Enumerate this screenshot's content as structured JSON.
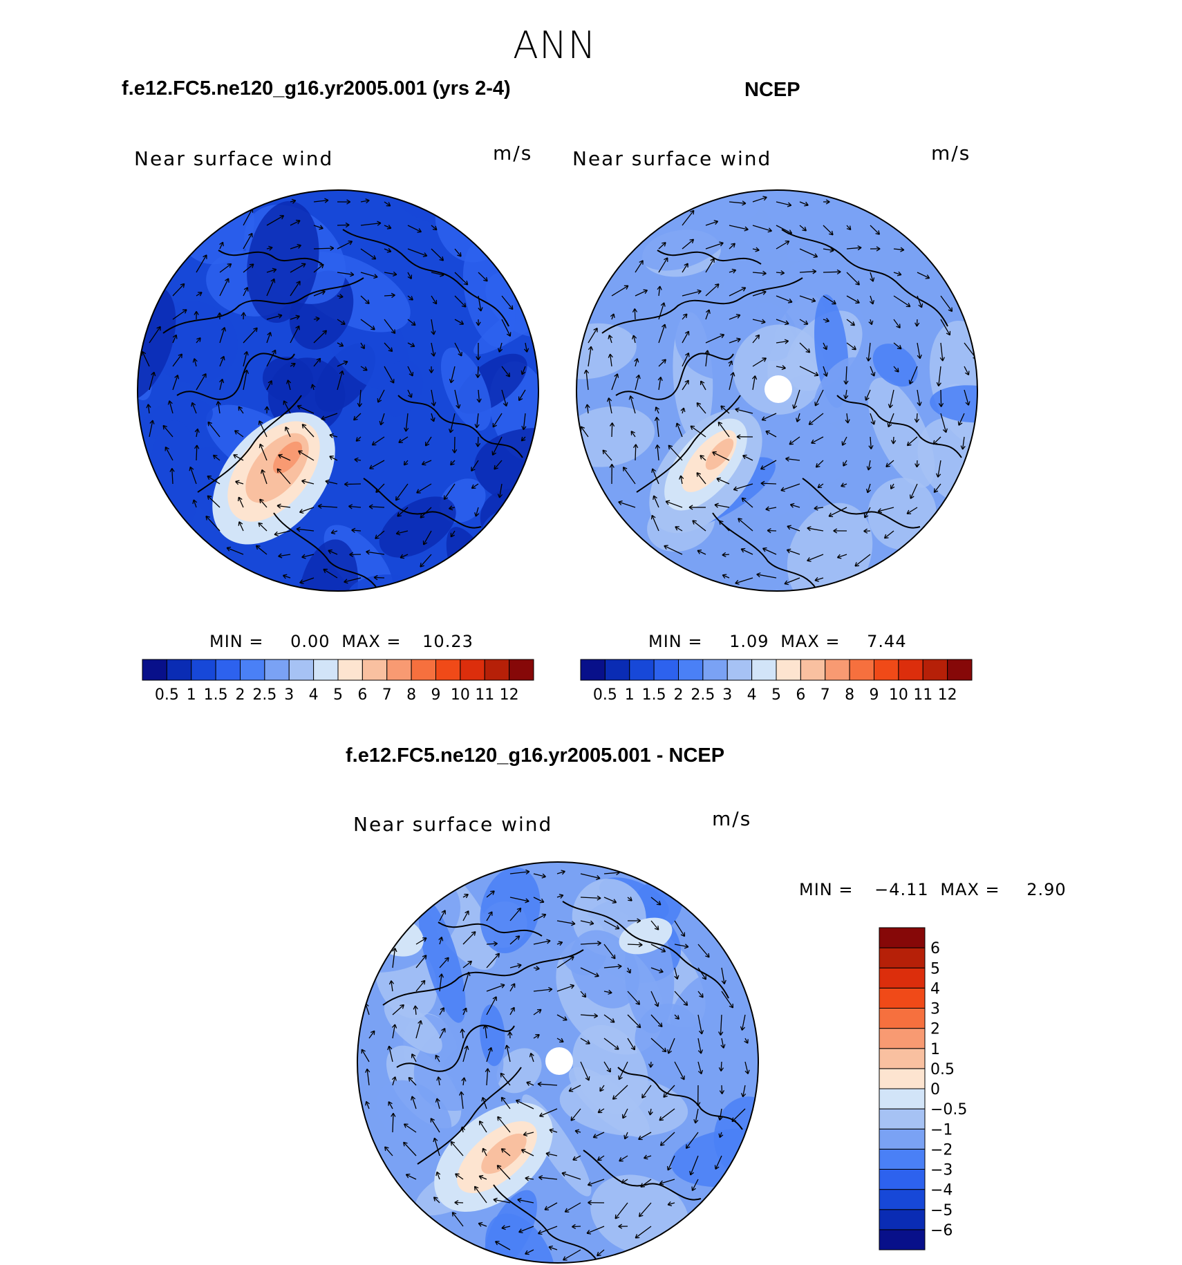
{
  "figure": {
    "title": "ANN",
    "top_left_title": "f.e12.FC5.ne120_g16.yr2005.001 (yrs 2-4)",
    "top_right_title": "NCEP",
    "bottom_title": "f.e12.FC5.ne120_g16.yr2005.001 - NCEP"
  },
  "colors": {
    "abs_palette": [
      "#08108a",
      "#0a2cb4",
      "#1748d8",
      "#2d62ee",
      "#4a80f6",
      "#7aa2f4",
      "#a6c2f4",
      "#d2e4f8",
      "#fde4d0",
      "#f9c0a0",
      "#f89a72",
      "#f6703e",
      "#f04a18",
      "#dc2e0c",
      "#b62008",
      "#860808"
    ],
    "diff_palette": [
      "#08108a",
      "#0a2cb4",
      "#1748d8",
      "#2d62ee",
      "#4a80f6",
      "#7aa2f4",
      "#a6c2f4",
      "#d2e4f8",
      "#fde4d0",
      "#f9c0a0",
      "#f89a72",
      "#f6703e",
      "#f04a18",
      "#dc2e0c",
      "#b62008",
      "#860808"
    ]
  },
  "chart_data": [
    {
      "type": "heatmap",
      "projection": "north polar stereographic",
      "label_left": "Near surface wind",
      "label_right": "m/s",
      "min_text": "MIN =",
      "min_value": "0.00",
      "max_text": "MAX =",
      "max_value": "10.23",
      "contour_levels": [
        "0.5",
        "1",
        "1.5",
        "2",
        "2.5",
        "3",
        "4",
        "5",
        "6",
        "7",
        "8",
        "9",
        "10",
        "11",
        "12"
      ]
    },
    {
      "type": "heatmap",
      "projection": "north polar stereographic",
      "label_left": "Near surface wind",
      "label_right": "m/s",
      "min_text": "MIN =",
      "min_value": "1.09",
      "max_text": "MAX =",
      "max_value": "7.44",
      "contour_levels": [
        "0.5",
        "1",
        "1.5",
        "2",
        "2.5",
        "3",
        "4",
        "5",
        "6",
        "7",
        "8",
        "9",
        "10",
        "11",
        "12"
      ]
    },
    {
      "type": "heatmap",
      "projection": "north polar stereographic",
      "label_left": "Near surface wind",
      "label_right": "m/s",
      "min_text": "MIN =",
      "min_value": "−4.11",
      "max_text": "MAX =",
      "max_value": "2.90",
      "contour_levels": [
        "−6",
        "−5",
        "−4",
        "−3",
        "−2",
        "−1",
        "−0.5",
        "0",
        "0.5",
        "1",
        "2",
        "3",
        "4",
        "5",
        "6"
      ]
    }
  ]
}
